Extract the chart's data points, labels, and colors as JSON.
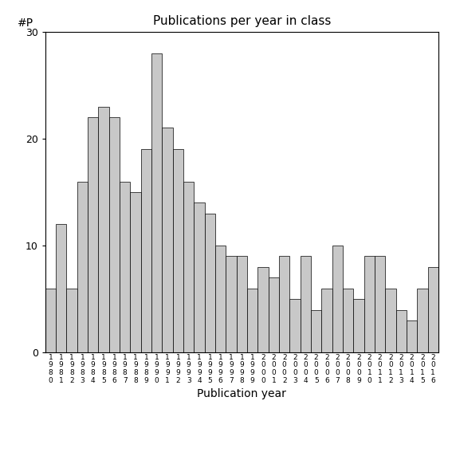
{
  "title": "Publications per year in class",
  "xlabel": "Publication year",
  "ylabel": "#P",
  "bar_color": "#c8c8c8",
  "bar_edge_color": "#000000",
  "background_color": "#ffffff",
  "ylim": [
    0,
    30
  ],
  "yticks": [
    0,
    10,
    20,
    30
  ],
  "years": [
    1980,
    1981,
    1982,
    1983,
    1984,
    1985,
    1986,
    1987,
    1988,
    1989,
    1990,
    1991,
    1992,
    1993,
    1994,
    1995,
    1996,
    1997,
    1998,
    1999,
    2000,
    2001,
    2002,
    2003,
    2004,
    2005,
    2006,
    2007,
    2008,
    2009,
    2010,
    2011,
    2012,
    2013,
    2014,
    2015,
    2016
  ],
  "values": [
    6,
    12,
    6,
    16,
    22,
    23,
    22,
    16,
    15,
    19,
    28,
    21,
    19,
    16,
    14,
    13,
    10,
    9,
    9,
    6,
    8,
    7,
    9,
    5,
    9,
    4,
    6,
    10,
    6,
    5,
    9,
    9,
    6,
    4,
    3,
    6,
    8
  ]
}
